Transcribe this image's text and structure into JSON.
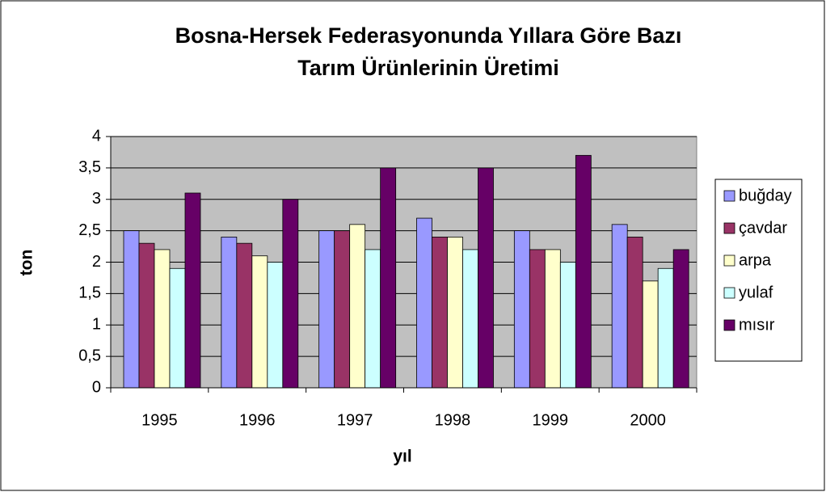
{
  "chart_data": {
    "type": "bar",
    "title": [
      "Bosna-Hersek Federasyonunda  Yıllara Göre Bazı",
      "Tarım Ürünlerinin Üretimi"
    ],
    "xlabel": "yıl",
    "ylabel": "ton",
    "categories": [
      "1995",
      "1996",
      "1997",
      "1998",
      "1999",
      "2000"
    ],
    "series": [
      {
        "name": "buğday",
        "color": "#9999ff",
        "values": [
          2.5,
          2.4,
          2.5,
          2.7,
          2.5,
          2.6
        ]
      },
      {
        "name": "çavdar",
        "color": "#993366",
        "values": [
          2.3,
          2.3,
          2.5,
          2.4,
          2.2,
          2.4
        ]
      },
      {
        "name": "arpa",
        "color": "#ffffcc",
        "values": [
          2.2,
          2.1,
          2.6,
          2.4,
          2.2,
          1.7
        ]
      },
      {
        "name": "yulaf",
        "color": "#ccffff",
        "values": [
          1.9,
          2.0,
          2.2,
          2.2,
          2.0,
          1.9
        ]
      },
      {
        "name": "mısır",
        "color": "#660066",
        "values": [
          3.1,
          3.0,
          3.5,
          3.5,
          3.7,
          2.2
        ]
      }
    ],
    "ylim": [
      0,
      4
    ],
    "yticks": [
      0,
      {
        "value": 0.5,
        "label": "0,5"
      },
      1,
      {
        "value": 1.5,
        "label": "1,5"
      },
      2,
      {
        "value": 2.5,
        "label": "2,5"
      },
      3,
      {
        "value": 3.5,
        "label": "3,5"
      },
      4
    ],
    "grid": true,
    "legend": "right",
    "plot_background": "#c0c0c0"
  }
}
